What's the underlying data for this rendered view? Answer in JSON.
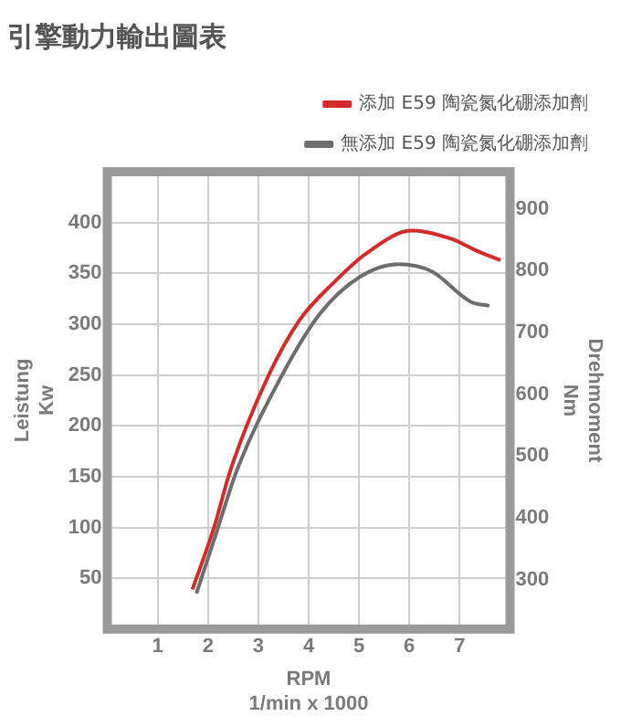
{
  "chart_data": {
    "type": "line",
    "title": "引擎動力輸出圖表",
    "xlabel": "RPM\n1/min x 1000",
    "ylabel": "Leistung\nKw",
    "y2label": "Drehmoment\nNm",
    "xlim": [
      0,
      8
    ],
    "xticks": [
      1,
      2,
      3,
      4,
      5,
      6,
      7
    ],
    "ylim": [
      0,
      450
    ],
    "yticks": [
      50,
      100,
      150,
      200,
      250,
      300,
      350,
      400
    ],
    "y2lim": [
      220,
      960
    ],
    "y2ticks": [
      300,
      400,
      500,
      600,
      700,
      800,
      900
    ],
    "grid": true,
    "legend": "top right",
    "marker": "none",
    "line_style": "solid",
    "series": [
      {
        "name": "添加 E59 陶瓷氮化硼添加劑",
        "color": "#d42a2a",
        "x": [
          1.69,
          2.12,
          2.45,
          3.17,
          3.82,
          4.48,
          5.13,
          6.05,
          6.83,
          7.35,
          7.81
        ],
        "values": [
          39,
          100,
          157,
          246,
          304,
          340,
          369,
          392,
          384,
          372,
          363
        ]
      },
      {
        "name": "無添加 E59 陶瓷氮化硼添加劑",
        "color": "#6d6d6d",
        "x": [
          1.77,
          2.2,
          2.58,
          3.43,
          4.22,
          5.0,
          5.78,
          6.44,
          7.22,
          7.59
        ],
        "values": [
          35,
          100,
          157,
          246,
          310,
          346,
          359,
          352,
          322,
          318
        ]
      }
    ]
  }
}
